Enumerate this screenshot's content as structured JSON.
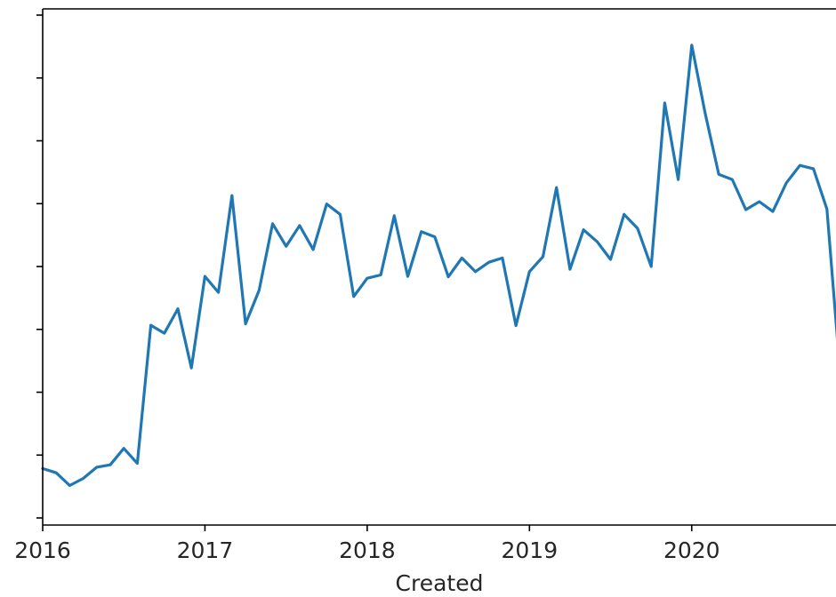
{
  "chart_data": {
    "type": "line",
    "title": "",
    "xlabel": "Created",
    "ylabel": "",
    "grid": false,
    "legend": "none",
    "x_ticks": [
      "2016",
      "2017",
      "2018",
      "2019",
      "2020"
    ],
    "xlim": [
      "2016-01",
      "2020-12"
    ],
    "ylim": [
      0,
      100
    ],
    "y_tick_values": [
      0,
      12.5,
      25,
      37.5,
      50,
      62.5,
      75,
      87.5,
      100
    ],
    "series": [
      {
        "color": "#1f77b4",
        "x": [
          "2016-01",
          "2016-02",
          "2016-03",
          "2016-04",
          "2016-05",
          "2016-06",
          "2016-07",
          "2016-08",
          "2016-09",
          "2016-10",
          "2016-11",
          "2016-12",
          "2017-01",
          "2017-02",
          "2017-03",
          "2017-04",
          "2017-05",
          "2017-06",
          "2017-07",
          "2017-08",
          "2017-09",
          "2017-10",
          "2017-11",
          "2017-12",
          "2018-01",
          "2018-02",
          "2018-03",
          "2018-04",
          "2018-05",
          "2018-06",
          "2018-07",
          "2018-08",
          "2018-09",
          "2018-10",
          "2018-11",
          "2018-12",
          "2019-01",
          "2019-02",
          "2019-03",
          "2019-04",
          "2019-05",
          "2019-06",
          "2019-07",
          "2019-08",
          "2019-09",
          "2019-10",
          "2019-11",
          "2019-12",
          "2020-01",
          "2020-02",
          "2020-03",
          "2020-04",
          "2020-05",
          "2020-06",
          "2020-07",
          "2020-08",
          "2020-09",
          "2020-10",
          "2020-11",
          "2020-12"
        ],
        "values": [
          7.1,
          6.2,
          3.5,
          5.0,
          7.4,
          7.9,
          11.4,
          8.2,
          37.6,
          35.9,
          41.1,
          28.5,
          48.0,
          44.6,
          65.2,
          37.9,
          45.0,
          59.2,
          54.4,
          58.8,
          53.7,
          63.4,
          61.2,
          43.7,
          47.6,
          48.3,
          60.9,
          48.0,
          57.5,
          56.4,
          47.9,
          51.9,
          49.0,
          51.0,
          51.9,
          37.5,
          49.0,
          52.2,
          66.9,
          49.5,
          57.9,
          55.4,
          51.6,
          61.2,
          58.2,
          50.1,
          84.9,
          68.6,
          97.2,
          82.6,
          69.7,
          68.6,
          62.2,
          63.9,
          61.8,
          67.9,
          71.6,
          70.9,
          62.3,
          26.6
        ]
      }
    ]
  }
}
